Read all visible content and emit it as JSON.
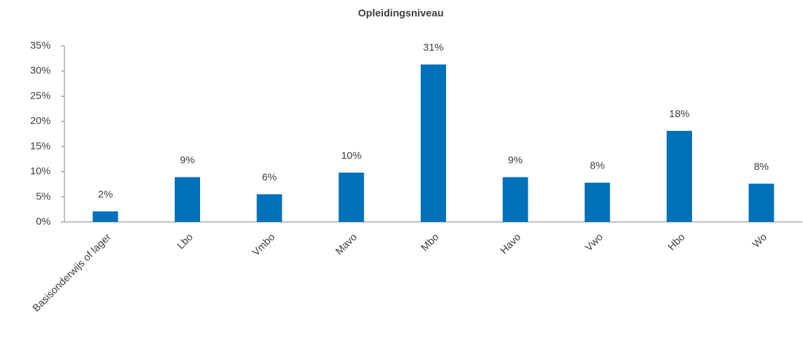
{
  "chart_data": {
    "type": "bar",
    "title": "Opleidingsniveau",
    "categories": [
      "Basisonderwijs of lager",
      "Lbo",
      "Vmbo",
      "Mavo",
      "Mbo",
      "Havo",
      "Vwo",
      "Hbo",
      "Wo"
    ],
    "values": [
      2.1,
      8.9,
      5.5,
      9.8,
      31.3,
      8.9,
      7.8,
      18.1,
      7.6
    ],
    "value_labels": [
      "2%",
      "9%",
      "6%",
      "10%",
      "31%",
      "9%",
      "8%",
      "18%",
      "8%"
    ],
    "color": "#0070b8",
    "ylim": [
      0,
      35
    ],
    "yticks": [
      {
        "value": 0,
        "label": "0%"
      },
      {
        "value": 5,
        "label": "5%"
      },
      {
        "value": 10,
        "label": "10%"
      },
      {
        "value": 15,
        "label": "15%"
      },
      {
        "value": 20,
        "label": "20%"
      },
      {
        "value": 25,
        "label": "25%"
      },
      {
        "value": 30,
        "label": "30%"
      },
      {
        "value": 35,
        "label": "35%"
      }
    ],
    "grid": false
  }
}
